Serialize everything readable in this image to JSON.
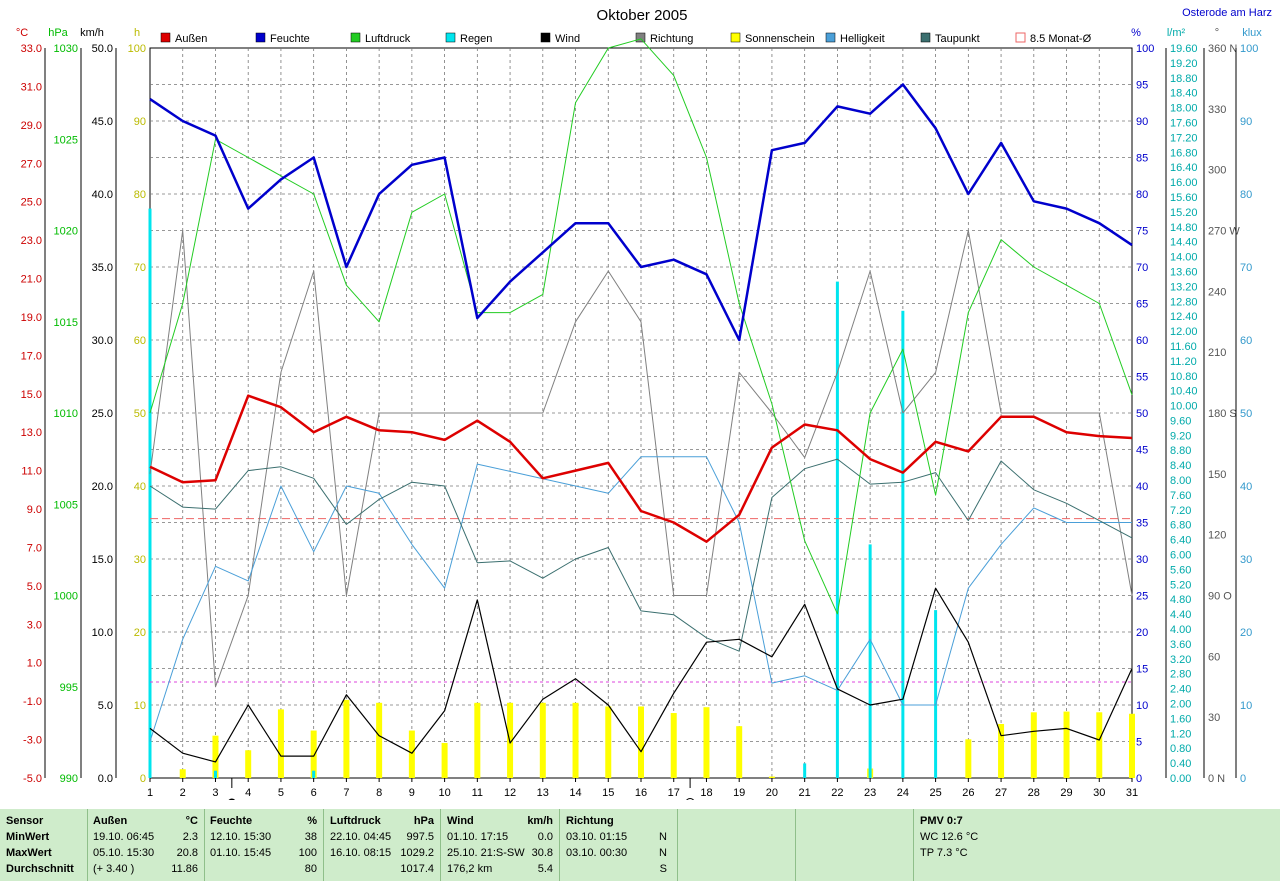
{
  "chart_data": {
    "type": "line",
    "title": "Oktober 2005",
    "location": "Osterode am Harz",
    "categories": [
      1,
      2,
      3,
      4,
      5,
      6,
      7,
      8,
      9,
      10,
      11,
      12,
      13,
      14,
      15,
      16,
      17,
      18,
      19,
      20,
      21,
      22,
      23,
      24,
      25,
      26,
      27,
      28,
      29,
      30,
      31
    ],
    "axes": [
      {
        "unit": "°C",
        "color": "#cc0000",
        "min": -5,
        "max": 33,
        "ticks": [
          "-5.0",
          "-3.0",
          "-1.0",
          "1.0",
          "3.0",
          "5.0",
          "7.0",
          "9.0",
          "11.0",
          "13.0",
          "15.0",
          "17.0",
          "19.0",
          "21.0",
          "23.0",
          "25.0",
          "27.0",
          "29.0",
          "31.0",
          "33.0"
        ]
      },
      {
        "unit": "hPa",
        "color": "#00bb00",
        "min": 990,
        "max": 1030,
        "ticks": [
          "990",
          "995",
          "1000",
          "1005",
          "1010",
          "1015",
          "1020",
          "1025",
          "1030"
        ]
      },
      {
        "unit": "km/h",
        "color": "#000000",
        "min": 0,
        "max": 50,
        "ticks": [
          "0.0",
          "5.0",
          "10.0",
          "15.0",
          "20.0",
          "25.0",
          "30.0",
          "35.0",
          "40.0",
          "45.0",
          "50.0"
        ]
      },
      {
        "unit": "h",
        "color": "#bbbb00",
        "min": 0,
        "max": 100,
        "ticks": [
          "0",
          "10",
          "20",
          "30",
          "40",
          "50",
          "60",
          "70",
          "80",
          "90",
          "100"
        ]
      },
      {
        "unit": "%",
        "color": "#0000cc",
        "min": 0,
        "max": 100,
        "ticks": [
          "0",
          "5",
          "10",
          "15",
          "20",
          "25",
          "30",
          "35",
          "40",
          "45",
          "50",
          "55",
          "60",
          "65",
          "70",
          "75",
          "80",
          "85",
          "90",
          "95",
          "100"
        ]
      },
      {
        "unit": "l/m²",
        "color": "#00aaaa",
        "min": 0,
        "max": 20,
        "ticks": [
          "0.00",
          "0.40",
          "0.80",
          "1.20",
          "1.60",
          "2.00",
          "2.40",
          "2.80",
          "3.20",
          "3.60",
          "4.00",
          "4.40",
          "4.80",
          "5.20",
          "5.60",
          "6.00",
          "6.40",
          "6.80",
          "7.20",
          "7.60",
          "8.00",
          "8.40",
          "8.80",
          "9.20",
          "9.60",
          "10.00",
          "10.40",
          "10.80",
          "11.20",
          "11.60",
          "12.00",
          "12.40",
          "12.80",
          "13.20",
          "13.60",
          "14.00",
          "14.40",
          "14.80",
          "15.20",
          "15.60",
          "16.00",
          "16.40",
          "16.80",
          "17.20",
          "17.60",
          "18.00",
          "18.40",
          "18.80",
          "19.20",
          "19.60"
        ]
      },
      {
        "unit": "°",
        "color": "#555555",
        "min": 0,
        "max": 360,
        "ticks": [
          "0 N",
          "30",
          "60",
          "90 O",
          "120",
          "150",
          "180 S",
          "210",
          "240",
          "270 W",
          "300",
          "330",
          "360 N"
        ]
      },
      {
        "unit": "klux",
        "color": "#3399cc",
        "min": 0,
        "max": 100,
        "ticks": [
          "0",
          "10",
          "20",
          "30",
          "40",
          "50",
          "60",
          "70",
          "80",
          "90",
          "100"
        ]
      }
    ],
    "legend": [
      "Außen",
      "Feuchte",
      "Luftdruck",
      "Regen",
      "Wind",
      "Richtung",
      "Sonnenschein",
      "Helligkeit",
      "Taupunkt",
      "8.5 Monat-Ø"
    ],
    "colors": {
      "aussen": "#dd0000",
      "feuchte": "#0000cc",
      "luftdruck": "#22cc22",
      "regen": "#00e5ee",
      "wind": "#000000",
      "richtung": "#808080",
      "sonne": "#ffff00",
      "hell": "#4a9fd8",
      "taupunkt": "#3b6f6f",
      "monat": "#ee6666"
    },
    "monthly_mean": 8.5,
    "series": [
      {
        "name": "Außen",
        "axis": "°C",
        "values": [
          11.2,
          10.4,
          10.5,
          14.9,
          14.3,
          13.0,
          13.8,
          13.1,
          13.0,
          12.6,
          13.6,
          12.5,
          10.6,
          11.0,
          11.4,
          8.9,
          8.3,
          7.3,
          8.7,
          12.2,
          13.4,
          13.1,
          11.6,
          10.9,
          12.5,
          12.0,
          13.8,
          13.8,
          13.0,
          12.8,
          12.7
        ]
      },
      {
        "name": "Feuchte",
        "axis": "%",
        "values": [
          93,
          90,
          88,
          78,
          82,
          85,
          70,
          80,
          84,
          85,
          63,
          68,
          72,
          76,
          76,
          70,
          71,
          69,
          60,
          86,
          87,
          92,
          91,
          95,
          89,
          80,
          87,
          79,
          78,
          76,
          73
        ]
      },
      {
        "name": "Luftdruck",
        "axis": "hPa",
        "values": [
          1010.0,
          1016.0,
          1025.0,
          1024.0,
          1023.0,
          1022.0,
          1017.0,
          1015.0,
          1021.0,
          1022.0,
          1015.5,
          1015.5,
          1016.5,
          1027.0,
          1030.0,
          1030.5,
          1028.5,
          1024.0,
          1016.0,
          1010.5,
          1003.0,
          999.0,
          1010.0,
          1013.5,
          1005.5,
          1015.5,
          1019.5,
          1018.0,
          1017.0,
          1016.0,
          1011.0
        ]
      },
      {
        "name": "Wind",
        "axis": "km/h",
        "values": [
          3.4,
          1.7,
          1.1,
          5.0,
          1.5,
          1.5,
          5.7,
          2.9,
          1.7,
          4.6,
          12.2,
          2.4,
          5.4,
          6.8,
          5.0,
          1.8,
          5.8,
          9.3,
          9.5,
          8.3,
          11.9,
          6.1,
          5.0,
          5.4,
          13.0,
          9.3,
          2.9,
          3.2,
          3.4,
          2.6,
          7.5
        ]
      },
      {
        "name": "Richtung",
        "axis": "°",
        "values": [
          150,
          270,
          45,
          90,
          200,
          250,
          90,
          180,
          180,
          180,
          180,
          180,
          180,
          225,
          250,
          225,
          90,
          90,
          200,
          180,
          158,
          200,
          250,
          180,
          200,
          270,
          180,
          180,
          180,
          180,
          90
        ]
      },
      {
        "name": "Sonnenschein",
        "axis": "h",
        "values": [
          0,
          1.2,
          5.8,
          3.8,
          9.4,
          6.5,
          10.7,
          10.3,
          6.5,
          4.8,
          10.3,
          10.3,
          10.3,
          10.3,
          9.8,
          9.8,
          8.9,
          9.7,
          7.1,
          0.2,
          0,
          0,
          1.3,
          0,
          0,
          5.3,
          7.4,
          9.0,
          9.1,
          9.0,
          8.8
        ]
      },
      {
        "name": "Helligkeit",
        "axis": "klux",
        "values": [
          5,
          19,
          29,
          27,
          40,
          31,
          40,
          39,
          32,
          26,
          43,
          42,
          41,
          40,
          39,
          44,
          44,
          44,
          35,
          13,
          14,
          12,
          19,
          10,
          10,
          26,
          32,
          37,
          35,
          35,
          35
        ]
      },
      {
        "name": "Taupunkt",
        "axis": "°C",
        "values": [
          10.2,
          9.1,
          9.0,
          11.0,
          11.2,
          10.6,
          8.2,
          9.5,
          10.4,
          10.2,
          6.2,
          6.3,
          5.4,
          6.4,
          7.0,
          3.7,
          3.5,
          2.3,
          1.6,
          9.6,
          11.1,
          11.6,
          10.3,
          10.4,
          10.9,
          8.4,
          11.5,
          10.0,
          9.3,
          8.4,
          7.5
        ]
      },
      {
        "name": "Regen",
        "axis": "l/m²",
        "values": [
          15.6,
          0,
          0.2,
          0,
          0,
          0.2,
          0,
          0,
          0,
          0,
          0,
          0,
          0,
          0,
          0,
          0,
          0,
          0,
          0,
          0,
          0.4,
          13.6,
          6.4,
          12.8,
          4.6,
          0,
          0,
          0,
          0,
          0,
          0
        ]
      }
    ],
    "markers": {
      "new_moon_day": 3.5,
      "full_moon_day": 17.5
    }
  },
  "stats": {
    "headers": {
      "sensor": "Sensor",
      "aussen": "Außen",
      "aussen_unit": "°C",
      "feuchte": "Feuchte",
      "feuchte_unit": "%",
      "luftdruck": "Luftdruck",
      "luftdruck_unit": "hPa",
      "wind": "Wind",
      "wind_unit": "km/h",
      "richtung": "Richtung",
      "pmv": "PMV 0:7"
    },
    "labels": {
      "min": "MinWert",
      "max": "MaxWert",
      "avg": "Durchschnitt"
    },
    "aussen": {
      "min_time": "19.10.  06:45",
      "min_val": "2.3",
      "max_time": "05.10.  15:30",
      "max_val": "20.8",
      "avg_extra": "(+ 3.40 )",
      "avg_val": "11.86"
    },
    "feuchte": {
      "min_time": "12.10.  15:30",
      "min_val": "38",
      "max_time": "01.10.  15:45",
      "max_val": "100",
      "avg_val": "80"
    },
    "luftdruck": {
      "min_time": "22.10.  04:45",
      "min_val": "997.5",
      "max_time": "16.10.  08:15",
      "max_val": "1029.2",
      "avg_val": "1017.4"
    },
    "wind": {
      "min_time": "01.10.  17:15",
      "min_val": "0.0",
      "max_time": "25.10.  21:S-SW",
      "max_val": "30.8",
      "avg_extra": "176,2 km",
      "avg_val": "5.4"
    },
    "richtung": {
      "min_time": "03.10.  01:15",
      "min_val": "N",
      "max_time": "03.10.  00:30",
      "max_val": "N",
      "avg_val": "S"
    },
    "pmv": {
      "wc": "WC 12.6 °C",
      "tp": "TP 7.3 °C"
    }
  }
}
